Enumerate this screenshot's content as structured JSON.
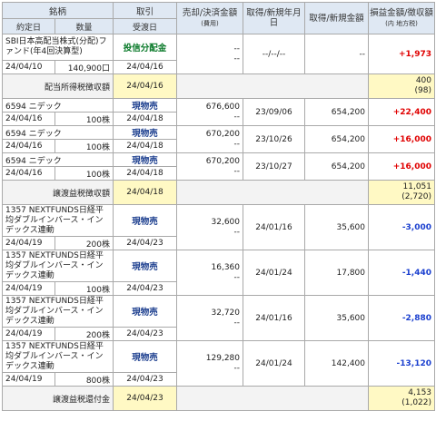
{
  "header": {
    "col_security": "銘柄",
    "col_trade": "取引",
    "col_sale": "売却/決済金額",
    "col_sale_sub": "(費用)",
    "col_acq_date": "取得/新規年月日",
    "col_acq_amount": "取得/新規金額",
    "col_pl": "損益金額/徴収額",
    "col_pl_sub": "(内 地方税)",
    "col_contract_date": "約定日",
    "col_qty": "数量",
    "col_settle_date": "受渡日"
  },
  "rows": [
    {
      "name": "SBI日本高配当株式(分配)ファンド(年4回決算型)",
      "date": "24/04/10",
      "qty": "140,900口",
      "trade": "投信分配金",
      "settle": "24/04/16",
      "sale": "--",
      "fee": "--",
      "acq_date": "--/--/--",
      "acq_amount": "--",
      "pl": "+1,973"
    },
    {
      "summary": "配当所得税徴収額",
      "settle": "24/04/16",
      "pl": "400",
      "pl_local": "(98)"
    },
    {
      "name": "6594 ニデック",
      "date": "24/04/16",
      "qty": "100株",
      "trade": "現物売",
      "settle": "24/04/18",
      "sale": "676,600",
      "fee": "--",
      "acq_date": "23/09/06",
      "acq_amount": "654,200",
      "pl": "+22,400"
    },
    {
      "name": "6594 ニデック",
      "date": "24/04/16",
      "qty": "100株",
      "trade": "現物売",
      "settle": "24/04/18",
      "sale": "670,200",
      "fee": "--",
      "acq_date": "23/10/26",
      "acq_amount": "654,200",
      "pl": "+16,000"
    },
    {
      "name": "6594 ニデック",
      "date": "24/04/16",
      "qty": "100株",
      "trade": "現物売",
      "settle": "24/04/18",
      "sale": "670,200",
      "fee": "--",
      "acq_date": "23/10/27",
      "acq_amount": "654,200",
      "pl": "+16,000"
    },
    {
      "summary": "譲渡益税徴収額",
      "settle": "24/04/18",
      "pl": "11,051",
      "pl_local": "(2,720)"
    },
    {
      "name": "1357 NEXTFUNDS日経平均ダブルインバース・インデックス連動",
      "date": "24/04/19",
      "qty": "200株",
      "trade": "現物売",
      "settle": "24/04/23",
      "sale": "32,600",
      "fee": "--",
      "acq_date": "24/01/16",
      "acq_amount": "35,600",
      "pl": "-3,000"
    },
    {
      "name": "1357 NEXTFUNDS日経平均ダブルインバース・インデックス連動",
      "date": "24/04/19",
      "qty": "100株",
      "trade": "現物売",
      "settle": "24/04/23",
      "sale": "16,360",
      "fee": "--",
      "acq_date": "24/01/24",
      "acq_amount": "17,800",
      "pl": "-1,440"
    },
    {
      "name": "1357 NEXTFUNDS日経平均ダブルインバース・インデックス連動",
      "date": "24/04/19",
      "qty": "200株",
      "trade": "現物売",
      "settle": "24/04/23",
      "sale": "32,720",
      "fee": "--",
      "acq_date": "24/01/16",
      "acq_amount": "35,600",
      "pl": "-2,880"
    },
    {
      "name": "1357 NEXTFUNDS日経平均ダブルインバース・インデックス連動",
      "date": "24/04/19",
      "qty": "800株",
      "trade": "現物売",
      "settle": "24/04/23",
      "sale": "129,280",
      "fee": "--",
      "acq_date": "24/01/24",
      "acq_amount": "142,400",
      "pl": "-13,120"
    },
    {
      "summary": "譲渡益税還付金",
      "settle": "24/04/23",
      "pl": "4,153",
      "pl_local": "(1,022)"
    }
  ]
}
